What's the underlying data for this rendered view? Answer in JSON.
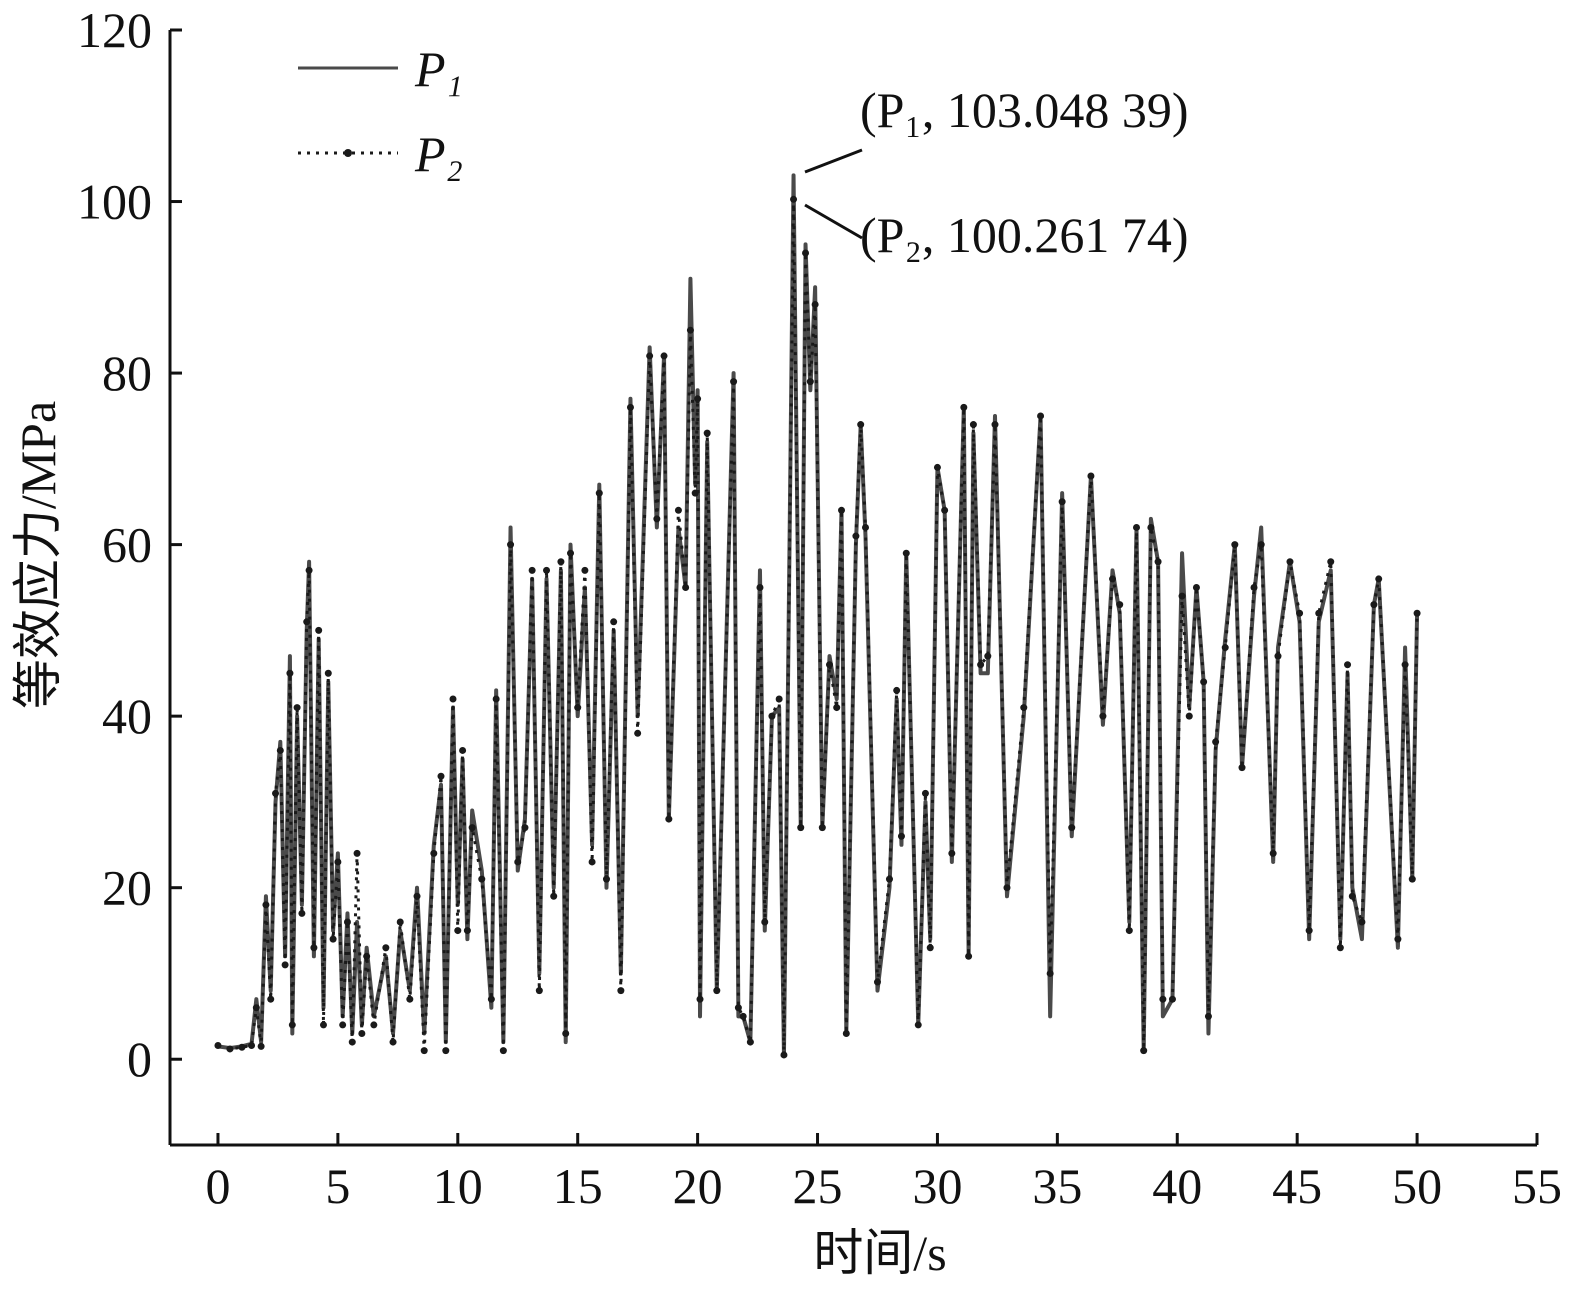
{
  "chart_data": {
    "type": "line",
    "xlabel": "时间/s",
    "ylabel": "等效应力/MPa",
    "x": [
      0,
      0.5,
      1,
      1.4,
      1.6,
      1.8,
      2,
      2.2,
      2.4,
      2.6,
      2.8,
      3,
      3.1,
      3.3,
      3.5,
      3.7,
      3.8,
      4,
      4.2,
      4.4,
      4.6,
      4.8,
      5,
      5.2,
      5.4,
      5.6,
      5.8,
      6,
      6.2,
      6.5,
      7,
      7.3,
      7.6,
      8,
      8.3,
      8.6,
      9,
      9.3,
      9.5,
      9.8,
      10,
      10.2,
      10.4,
      10.6,
      11,
      11.4,
      11.6,
      11.9,
      12.2,
      12.5,
      12.8,
      13.1,
      13.4,
      13.7,
      14,
      14.3,
      14.5,
      14.7,
      15,
      15.3,
      15.6,
      15.9,
      16.2,
      16.5,
      16.8,
      17.2,
      17.5,
      18,
      18.3,
      18.6,
      18.8,
      19.2,
      19.5,
      19.7,
      19.9,
      20,
      20.1,
      20.4,
      20.8,
      21.5,
      21.7,
      21.9,
      22.2,
      22.6,
      22.8,
      23.1,
      23.4,
      23.6,
      24,
      24.3,
      24.5,
      24.7,
      24.9,
      25.2,
      25.5,
      25.8,
      26,
      26.2,
      26.6,
      26.8,
      27,
      27.5,
      28,
      28.3,
      28.5,
      28.7,
      29.2,
      29.5,
      29.7,
      30,
      30.3,
      30.6,
      31.1,
      31.3,
      31.5,
      31.8,
      32.1,
      32.4,
      32.9,
      33.6,
      34.3,
      34.7,
      35.2,
      35.6,
      36.4,
      36.9,
      37.3,
      37.6,
      38,
      38.3,
      38.6,
      38.9,
      39.2,
      39.4,
      39.8,
      40.2,
      40.5,
      40.8,
      41.1,
      41.3,
      41.6,
      42,
      42.4,
      42.7,
      43.2,
      43.5,
      44,
      44.2,
      44.7,
      45.1,
      45.5,
      45.9,
      46.4,
      46.8,
      47.1,
      47.3,
      47.7,
      48.2,
      48.4,
      49.2,
      49.5,
      49.8,
      50
    ],
    "series": [
      {
        "name": "P₁",
        "color": "#4a4a4a",
        "linestyle": "solid",
        "values": [
          1.5,
          1.3,
          1.5,
          1.8,
          7,
          2,
          19,
          8,
          30,
          37,
          12,
          47,
          3,
          40,
          18,
          50,
          58,
          12,
          49,
          6,
          44,
          15,
          24,
          5,
          17,
          3,
          16,
          4,
          13,
          5,
          12,
          3,
          15,
          8,
          20,
          3,
          25,
          32,
          2,
          41,
          18,
          35,
          14,
          29,
          22,
          6,
          43,
          2,
          62,
          22,
          28,
          56,
          10,
          56,
          20,
          57,
          2,
          60,
          40,
          55,
          25,
          67,
          20,
          50,
          10,
          77,
          40,
          83,
          62,
          82,
          28,
          62,
          55,
          91,
          67,
          78,
          5,
          72,
          8,
          80,
          5,
          5,
          2,
          57,
          15,
          40,
          41,
          0.5,
          103.04839,
          27,
          95,
          78,
          90,
          27,
          47,
          42,
          64,
          3,
          60,
          74,
          61,
          8,
          20,
          42,
          25,
          59,
          4,
          30,
          14,
          69,
          64,
          23,
          76,
          12,
          73,
          45,
          45,
          75,
          19,
          40,
          75,
          5,
          66,
          26,
          68,
          39,
          57,
          52,
          16,
          62,
          1,
          63,
          58,
          5,
          7,
          59,
          41,
          55,
          44,
          3,
          36,
          49,
          60,
          34,
          54,
          62,
          23,
          48,
          58,
          51,
          14,
          51,
          57,
          14,
          45,
          20,
          14,
          53,
          56,
          13,
          48,
          21,
          52
        ]
      },
      {
        "name": "P₂",
        "color": "#1a1a1a",
        "linestyle": "dotted",
        "values": [
          1.6,
          1.2,
          1.4,
          1.6,
          6,
          1.5,
          18,
          7,
          31,
          36,
          11,
          45,
          4,
          41,
          17,
          51,
          57,
          13,
          50,
          4,
          45,
          14,
          23,
          4,
          16,
          2,
          24,
          3,
          12,
          4,
          13,
          2,
          16,
          7,
          19,
          1,
          24,
          33,
          1,
          42,
          15,
          36,
          15,
          27,
          21,
          7,
          42,
          1,
          60,
          23,
          27,
          57,
          8,
          57,
          19,
          58,
          3,
          59,
          41,
          57,
          23,
          66,
          21,
          51,
          8,
          76,
          38,
          82,
          63,
          82,
          28,
          64,
          55,
          85,
          66,
          77,
          7,
          73,
          8,
          79,
          6,
          5,
          2,
          55,
          16,
          40,
          42,
          0.5,
          100.26174,
          27,
          94,
          79,
          88,
          27,
          46,
          41,
          64,
          3,
          61,
          74,
          62,
          9,
          21,
          43,
          26,
          59,
          4,
          31,
          13,
          69,
          64,
          24,
          76,
          12,
          74,
          46,
          47,
          74,
          20,
          41,
          75,
          10,
          65,
          27,
          68,
          40,
          56,
          53,
          15,
          62,
          1,
          62,
          58,
          7,
          7,
          54,
          40,
          55,
          44,
          5,
          37,
          48,
          60,
          34,
          55,
          60,
          24,
          47,
          58,
          52,
          15,
          52,
          58,
          13,
          46,
          19,
          16,
          53,
          56,
          14,
          46,
          21,
          52
        ]
      }
    ],
    "annotations": [
      "(P₁, 103.048 39)",
      "(P₂, 100.261 74)"
    ],
    "xlim": [
      -2,
      55
    ],
    "xticks": [
      0,
      5,
      10,
      15,
      20,
      25,
      30,
      35,
      40,
      45,
      50,
      55
    ],
    "ylim": [
      -10,
      120
    ],
    "yticks": [
      0,
      20,
      40,
      60,
      80,
      100,
      120
    ],
    "grid": false,
    "legend": "upper left"
  }
}
